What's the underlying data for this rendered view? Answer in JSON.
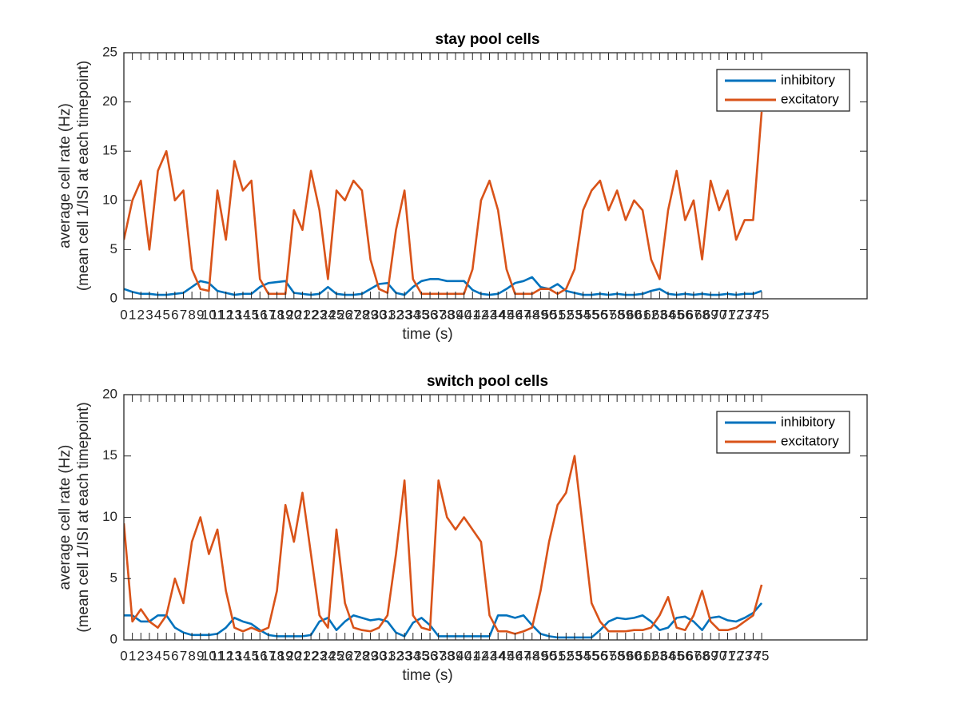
{
  "chart_data": [
    {
      "type": "line",
      "title": "stay pool cells",
      "xlabel": "time (s)",
      "ylabel": [
        "average cell rate (Hz)",
        "(mean cell 1/ISI at each timepoint)"
      ],
      "x": [
        0,
        1,
        2,
        3,
        4,
        5,
        6,
        7,
        8,
        9,
        10,
        11,
        12,
        13,
        14,
        15,
        16,
        17,
        18,
        19,
        20,
        21,
        22,
        23,
        24,
        25,
        26,
        27,
        28,
        29,
        30,
        31,
        32,
        33,
        34,
        35,
        36,
        37,
        38,
        39,
        40,
        41,
        42,
        43,
        44,
        45,
        46,
        47,
        48,
        49,
        50,
        51,
        52,
        53,
        54,
        55,
        56,
        57,
        58,
        59,
        60,
        61,
        62,
        63,
        64,
        65,
        66,
        67,
        68,
        69,
        70,
        71,
        72,
        73,
        74,
        75
      ],
      "xlim": [
        0,
        87.4
      ],
      "xticks": [
        0,
        1,
        2,
        3,
        4,
        5,
        6,
        7,
        8,
        9,
        10,
        11,
        12,
        13,
        14,
        15,
        16,
        17,
        18,
        19,
        20,
        21,
        22,
        23,
        24,
        25,
        26,
        27,
        28,
        29,
        30,
        31,
        32,
        33,
        34,
        35,
        36,
        37,
        38,
        39,
        40,
        41,
        42,
        43,
        44,
        45,
        46,
        47,
        48,
        49,
        50,
        51,
        52,
        53,
        54,
        55,
        56,
        57,
        58,
        59,
        60,
        61,
        62,
        63,
        64,
        65,
        66,
        67,
        68,
        69,
        70,
        71,
        72,
        73,
        74,
        75
      ],
      "ylim": [
        0,
        25
      ],
      "yticks": [
        0,
        5,
        10,
        15,
        20,
        25
      ],
      "legend": "northeast",
      "series": [
        {
          "name": "inhibitory",
          "color": "#0072bd",
          "values": [
            1.0,
            0.7,
            0.5,
            0.5,
            0.4,
            0.4,
            0.5,
            0.6,
            1.2,
            1.8,
            1.6,
            0.8,
            0.6,
            0.4,
            0.5,
            0.5,
            1.2,
            1.6,
            1.7,
            1.8,
            0.6,
            0.5,
            0.4,
            0.5,
            1.2,
            0.5,
            0.4,
            0.4,
            0.5,
            1.0,
            1.5,
            1.6,
            0.6,
            0.4,
            1.2,
            1.8,
            2.0,
            2.0,
            1.8,
            1.8,
            1.8,
            0.9,
            0.5,
            0.4,
            0.5,
            1.0,
            1.6,
            1.8,
            2.2,
            1.2,
            1.0,
            1.5,
            0.8,
            0.6,
            0.4,
            0.4,
            0.5,
            0.4,
            0.5,
            0.4,
            0.4,
            0.5,
            0.8,
            1.0,
            0.5,
            0.4,
            0.5,
            0.4,
            0.5,
            0.4,
            0.4,
            0.5,
            0.4,
            0.5,
            0.5,
            0.8
          ]
        },
        {
          "name": "excitatory",
          "color": "#d95319",
          "values": [
            6,
            10,
            12,
            5,
            13,
            15,
            10,
            11,
            3,
            1,
            0.8,
            11,
            6,
            14,
            11,
            12,
            2,
            0.5,
            0.5,
            0.5,
            9,
            7,
            13,
            9,
            2,
            11,
            10,
            12,
            11,
            4,
            1,
            0.6,
            7,
            11,
            2,
            0.5,
            0.5,
            0.5,
            0.5,
            0.5,
            0.5,
            3,
            10,
            12,
            9,
            3,
            0.5,
            0.5,
            0.5,
            1,
            1,
            0.5,
            1,
            3,
            9,
            11,
            12,
            9,
            11,
            8,
            10,
            9,
            4,
            2,
            9,
            13,
            8,
            10,
            4,
            12,
            9,
            11,
            6,
            8,
            8,
            19
          ]
        }
      ]
    },
    {
      "type": "line",
      "title": "switch pool cells",
      "xlabel": "time (s)",
      "ylabel": [
        "average cell rate (Hz)",
        "(mean cell 1/ISI at each timepoint)"
      ],
      "x": [
        0,
        1,
        2,
        3,
        4,
        5,
        6,
        7,
        8,
        9,
        10,
        11,
        12,
        13,
        14,
        15,
        16,
        17,
        18,
        19,
        20,
        21,
        22,
        23,
        24,
        25,
        26,
        27,
        28,
        29,
        30,
        31,
        32,
        33,
        34,
        35,
        36,
        37,
        38,
        39,
        40,
        41,
        42,
        43,
        44,
        45,
        46,
        47,
        48,
        49,
        50,
        51,
        52,
        53,
        54,
        55,
        56,
        57,
        58,
        59,
        60,
        61,
        62,
        63,
        64,
        65,
        66,
        67,
        68,
        69,
        70,
        71,
        72,
        73,
        74,
        75
      ],
      "xlim": [
        0,
        87.4
      ],
      "xticks": [
        0,
        1,
        2,
        3,
        4,
        5,
        6,
        7,
        8,
        9,
        10,
        11,
        12,
        13,
        14,
        15,
        16,
        17,
        18,
        19,
        20,
        21,
        22,
        23,
        24,
        25,
        26,
        27,
        28,
        29,
        30,
        31,
        32,
        33,
        34,
        35,
        36,
        37,
        38,
        39,
        40,
        41,
        42,
        43,
        44,
        45,
        46,
        47,
        48,
        49,
        50,
        51,
        52,
        53,
        54,
        55,
        56,
        57,
        58,
        59,
        60,
        61,
        62,
        63,
        64,
        65,
        66,
        67,
        68,
        69,
        70,
        71,
        72,
        73,
        74,
        75
      ],
      "ylim": [
        0,
        20
      ],
      "yticks": [
        0,
        5,
        10,
        15,
        20
      ],
      "legend": "northeast",
      "series": [
        {
          "name": "inhibitory",
          "color": "#0072bd",
          "values": [
            2,
            2,
            1.5,
            1.5,
            2,
            2,
            1,
            0.6,
            0.4,
            0.4,
            0.4,
            0.5,
            1,
            1.8,
            1.5,
            1.3,
            0.8,
            0.4,
            0.3,
            0.3,
            0.3,
            0.3,
            0.4,
            1.5,
            1.8,
            0.8,
            1.5,
            2,
            1.8,
            1.6,
            1.7,
            1.5,
            0.6,
            0.3,
            1.4,
            1.8,
            1.2,
            0.3,
            0.3,
            0.3,
            0.3,
            0.3,
            0.3,
            0.3,
            2.0,
            2.0,
            1.8,
            2.0,
            1.2,
            0.5,
            0.3,
            0.2,
            0.2,
            0.2,
            0.2,
            0.2,
            0.8,
            1.5,
            1.8,
            1.7,
            1.8,
            2.0,
            1.5,
            0.8,
            1.0,
            1.8,
            1.9,
            1.5,
            0.8,
            1.8,
            1.9,
            1.6,
            1.5,
            1.8,
            2.2,
            3.0
          ]
        },
        {
          "name": "excitatory",
          "color": "#d95319",
          "values": [
            9.5,
            1.5,
            2.5,
            1.5,
            1,
            2,
            5,
            3,
            8,
            10,
            7,
            9,
            4,
            1,
            0.7,
            1,
            0.7,
            1,
            4,
            11,
            8,
            12,
            7,
            2,
            1,
            9,
            3,
            1,
            0.8,
            0.7,
            1,
            2,
            7,
            13,
            2,
            1,
            0.8,
            13,
            10,
            9,
            10,
            9,
            8,
            2,
            0.7,
            0.7,
            0.5,
            0.7,
            1,
            4,
            8,
            11,
            12,
            15,
            9,
            3,
            1.5,
            0.7,
            0.7,
            0.7,
            0.8,
            0.8,
            1,
            2,
            3.5,
            1,
            0.8,
            2,
            4,
            1.5,
            0.8,
            0.8,
            1,
            1.5,
            2,
            4.5
          ]
        }
      ]
    }
  ]
}
